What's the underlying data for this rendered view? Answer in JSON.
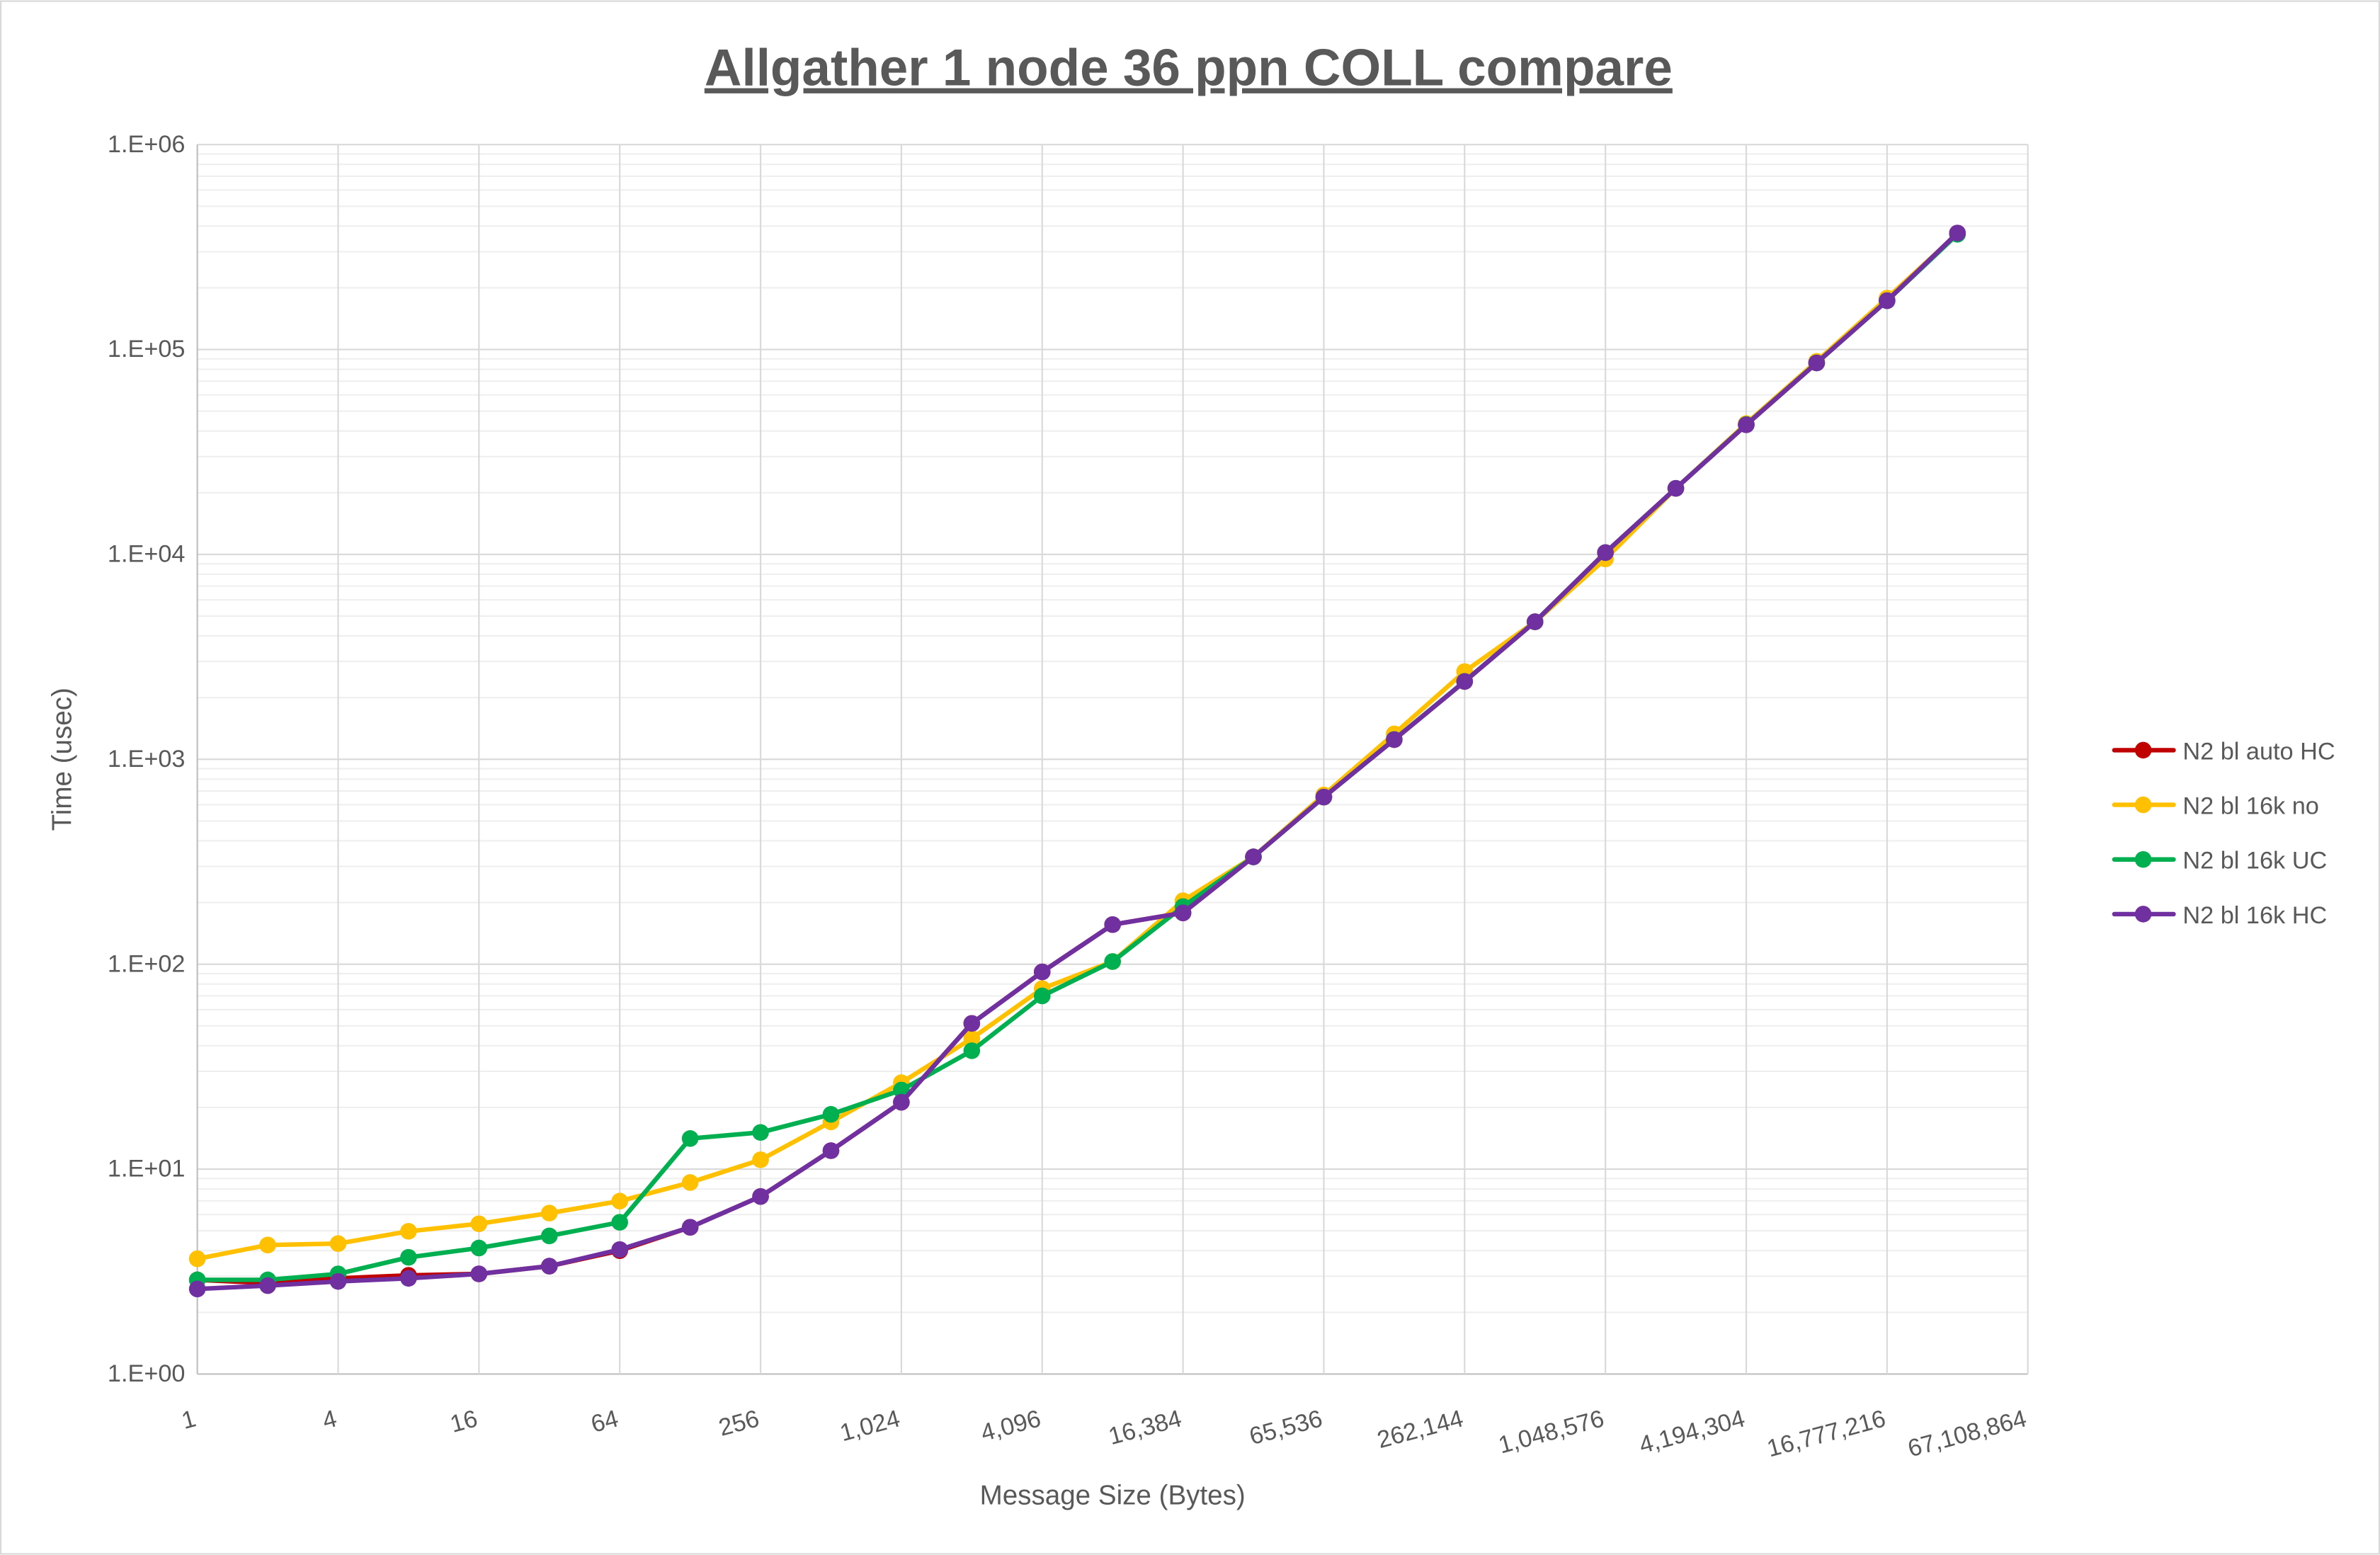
{
  "chart_data": {
    "type": "line",
    "title": "Allgather 1 node 36 ppn COLL compare",
    "xlabel": "Message Size (Bytes)",
    "ylabel": "Time (usec)",
    "x_scale": "log2",
    "y_scale": "log10",
    "xlim": [
      1,
      67108864
    ],
    "ylim": [
      1,
      1000000
    ],
    "grid": true,
    "legend_position": "right",
    "x_tick_labels": [
      "1",
      "4",
      "16",
      "64",
      "256",
      "1,024",
      "4,096",
      "16,384",
      "65,536",
      "262,144",
      "1,048,576",
      "4,194,304",
      "16,777,216",
      "67,108,864"
    ],
    "y_tick_labels": [
      "1.E+00",
      "1.E+01",
      "1.E+02",
      "1.E+03",
      "1.E+04",
      "1.E+05",
      "1.E+06"
    ],
    "x": [
      1,
      2,
      4,
      8,
      16,
      32,
      64,
      128,
      256,
      512,
      1024,
      2048,
      4096,
      8192,
      16384,
      32768,
      65536,
      131072,
      262144,
      524288,
      1048576,
      2097152,
      4194304,
      8388608,
      16777216,
      33554432
    ],
    "series": [
      {
        "name": "N2 bl auto HC",
        "color": "#C00000",
        "values": [
          2.88,
          2.78,
          2.93,
          3.03,
          3.08,
          3.36,
          4.0,
          5.2,
          7.35,
          12.3,
          21.2,
          51.4,
          91.7,
          156,
          178,
          334,
          654,
          1247,
          2397,
          4690,
          10200,
          21000,
          42900,
          86000,
          173000,
          370000
        ]
      },
      {
        "name": "N2 bl 16k no",
        "color": "#FFC000",
        "values": [
          3.65,
          4.26,
          4.33,
          4.97,
          5.41,
          6.1,
          6.98,
          8.6,
          11.1,
          17.0,
          26.4,
          43.4,
          76,
          103,
          204,
          334,
          670,
          1330,
          2680,
          4690,
          9500,
          21000,
          43500,
          87500,
          178000,
          367000
        ]
      },
      {
        "name": "N2 bl 16k UC",
        "color": "#00B050",
        "values": [
          2.88,
          2.88,
          3.08,
          3.71,
          4.12,
          4.72,
          5.5,
          14.1,
          15.1,
          18.5,
          24.3,
          37.8,
          70,
          103,
          191,
          334,
          654,
          1250,
          2400,
          4690,
          10200,
          21000,
          43000,
          86000,
          173000,
          365000
        ]
      },
      {
        "name": "N2 bl 16k HC",
        "color": "#7030A0",
        "values": [
          2.6,
          2.7,
          2.83,
          2.93,
          3.08,
          3.36,
          4.05,
          5.2,
          7.35,
          12.3,
          21.2,
          51.4,
          91.7,
          156,
          178,
          334,
          654,
          1247,
          2397,
          4690,
          10200,
          21000,
          42900,
          86000,
          173000,
          370000
        ]
      }
    ]
  }
}
